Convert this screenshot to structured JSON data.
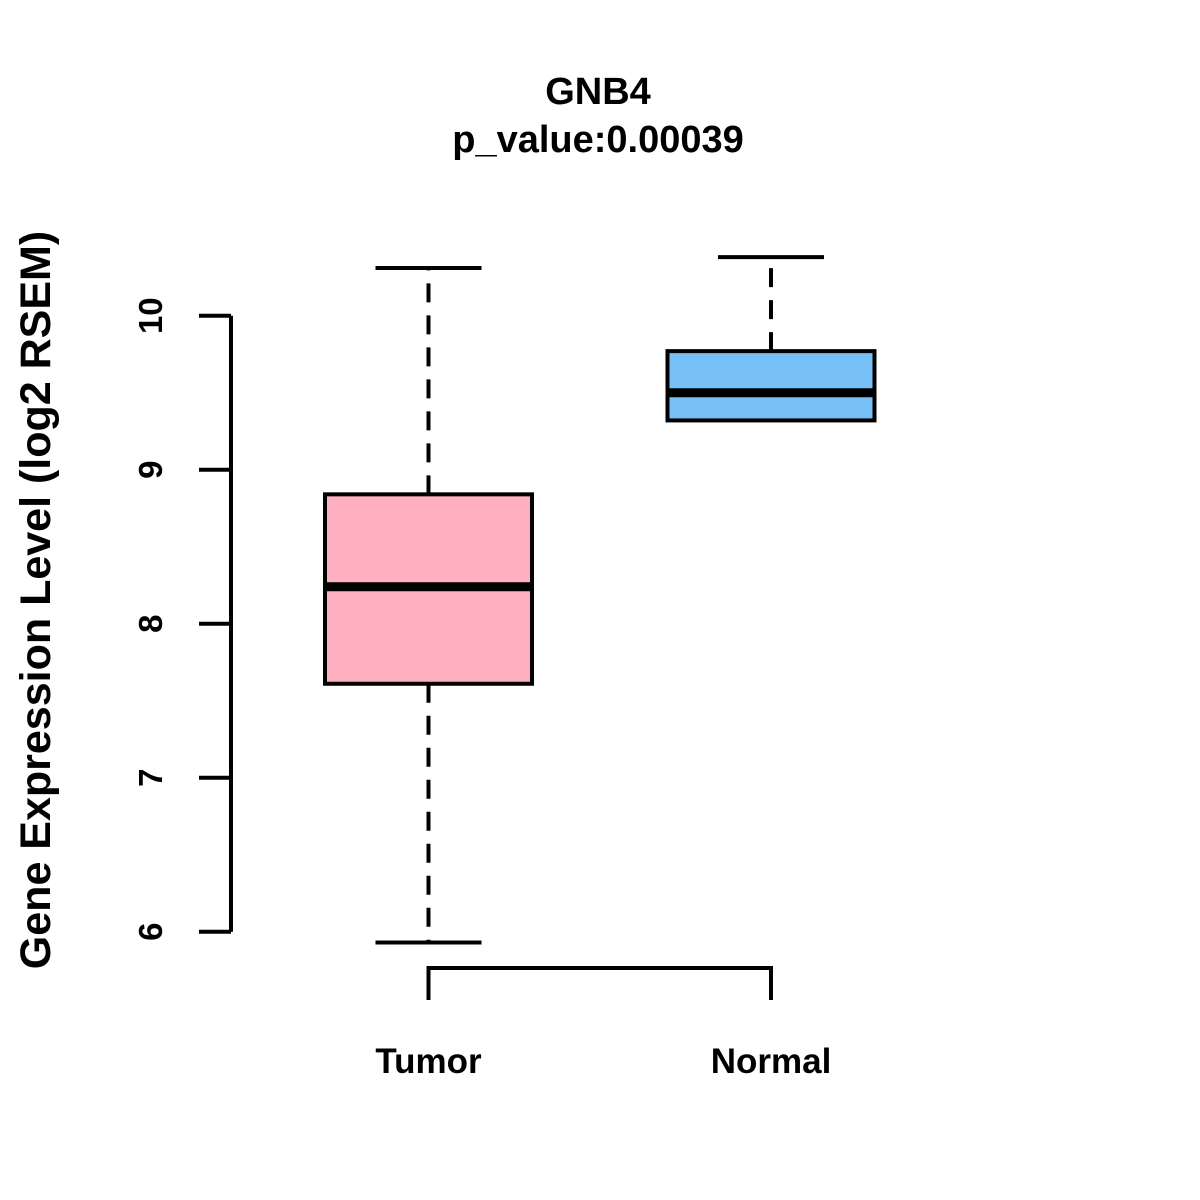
{
  "title": "GNB4",
  "subtitle": "p_value:0.00039",
  "ylabel": "Gene Expression Level (log2 RSEM)",
  "colors": {
    "tumor_fill": "#FFB0C0",
    "normal_fill": "#76C0F6",
    "line": "#000000",
    "background": "#FFFFFF"
  },
  "chart_data": {
    "type": "boxplot",
    "title": "GNB4",
    "subtitle": "p_value:0.00039",
    "xlabel": "",
    "ylabel": "Gene Expression Level (log2 RSEM)",
    "categories": [
      "Tumor",
      "Normal"
    ],
    "series": [
      {
        "name": "Tumor",
        "min": 5.93,
        "q1": 7.61,
        "median": 8.24,
        "q3": 8.84,
        "max": 10.31,
        "color": "#FFB0C0"
      },
      {
        "name": "Normal",
        "min": 9.32,
        "q1": 9.32,
        "median": 9.5,
        "q3": 9.77,
        "max": 10.38,
        "color": "#76C0F6"
      }
    ],
    "yticks": [
      6,
      7,
      8,
      9,
      10
    ],
    "ylim": [
      5.6,
      10.5
    ],
    "grid": false,
    "legend": "none"
  }
}
